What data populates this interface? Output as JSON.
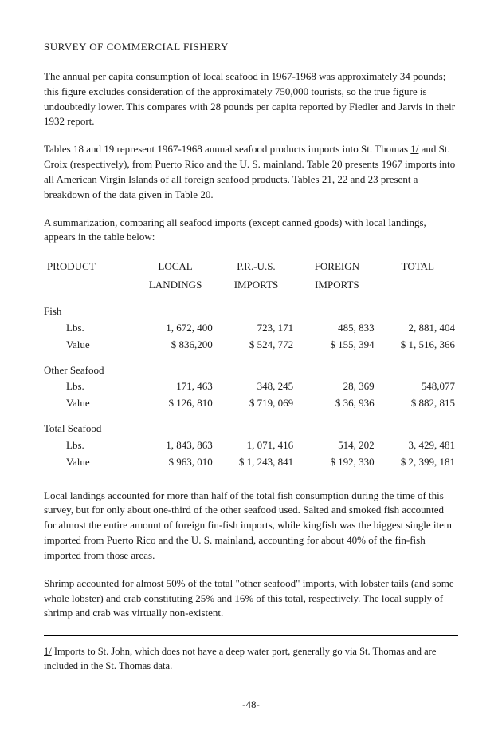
{
  "title": "SURVEY OF COMMERCIAL FISHERY",
  "para1": "The annual per capita consumption of local seafood in 1967-1968 was approximately 34 pounds; this figure excludes consideration of the approximately 750,000 tourists, so the true figure is undoubtedly lower. This compares with 28 pounds per capita reported by Fiedler and Jarvis in their 1932 report.",
  "para2a": "Tables 18 and 19 represent 1967-1968 annual seafood products imports into St. Thomas ",
  "para2_fn": "1/",
  "para2b": " and St. Croix (respectively), from Puerto Rico and the U. S. mainland. Table 20 presents 1967 imports into all American Virgin Islands of all foreign seafood products. Tables 21, 22 and 23 present a breakdown of the data given in Table 20.",
  "para3": "A summarization, comparing all seafood imports (except canned goods) with local landings, appears in the table below:",
  "table": {
    "columns": [
      "PRODUCT",
      "LOCAL LANDINGS",
      "P.R.-U.S. IMPORTS",
      "FOREIGN IMPORTS",
      "TOTAL"
    ],
    "col_line2": [
      "",
      "LANDINGS",
      "IMPORTS",
      "IMPORTS",
      ""
    ],
    "col_line1": [
      "PRODUCT",
      "LOCAL",
      "P.R.-U.S.",
      "FOREIGN",
      "TOTAL"
    ],
    "groups": [
      {
        "name": "Fish",
        "rows": [
          {
            "label": "Lbs.",
            "v": [
              "1, 672, 400",
              "723, 171",
              "485, 833",
              "2, 881, 404"
            ]
          },
          {
            "label": "Value",
            "v": [
              "$  836,200",
              "$ 524, 772",
              "$ 155, 394",
              "$ 1, 516, 366"
            ]
          }
        ]
      },
      {
        "name": "Other Seafood",
        "rows": [
          {
            "label": "Lbs.",
            "v": [
              "171, 463",
              "348, 245",
              "28, 369",
              "548,077"
            ]
          },
          {
            "label": "Value",
            "v": [
              "$  126, 810",
              "$ 719, 069",
              "$ 36, 936",
              "$ 882, 815"
            ]
          }
        ]
      },
      {
        "name": "Total Seafood",
        "rows": [
          {
            "label": "Lbs.",
            "v": [
              "1, 843, 863",
              "1, 071, 416",
              "514, 202",
              "3, 429, 481"
            ]
          },
          {
            "label": "Value",
            "v": [
              "$  963, 010",
              "$ 1, 243, 841",
              "$ 192, 330",
              "$ 2, 399, 181"
            ]
          }
        ]
      }
    ]
  },
  "para4": "Local landings accounted for more than half of the total fish consumption during the time of this survey, but for only about one-third of the other seafood used. Salted and smoked fish accounted for almost the entire amount of foreign fin-fish imports, while kingfish was the biggest single item imported from Puerto Rico and the U. S. mainland, accounting for about 40% of the fin-fish imported from those areas.",
  "para5": "Shrimp accounted for almost 50% of the total \"other seafood\" imports, with lobster tails (and some whole lobster) and crab constituting 25% and 16% of this total, respectively. The local supply of shrimp and crab was virtually non-existent.",
  "footnote_mark": "1/",
  "footnote_text": " Imports to St. John, which does not have a deep water port, generally go via St. Thomas and are included in the St. Thomas data.",
  "pagenum": "-48-"
}
